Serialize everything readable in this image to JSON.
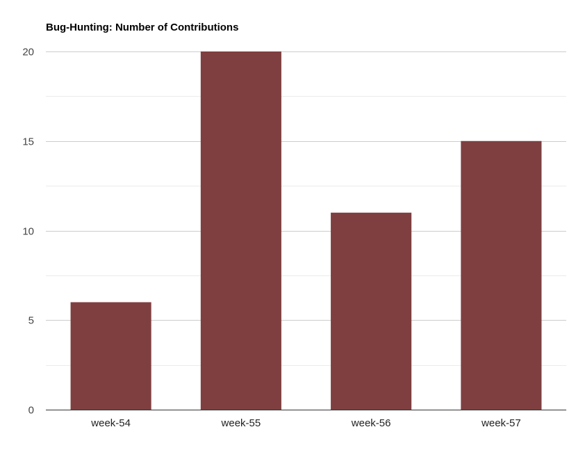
{
  "chart_data": {
    "type": "bar",
    "title": "Bug-Hunting: Number of Contributions",
    "categories": [
      "week-54",
      "week-55",
      "week-56",
      "week-57"
    ],
    "values": [
      6,
      20,
      11,
      15
    ],
    "ylim": [
      0,
      20
    ],
    "yticks": [
      0,
      5,
      10,
      15,
      20
    ],
    "xlabel": "",
    "ylabel": "",
    "grid": true,
    "legend": "none",
    "colors": {
      "bar": "#7f3f40",
      "gridline_major": "#cccccc",
      "gridline_minor": "#ebebeb",
      "axis": "#333333"
    }
  }
}
